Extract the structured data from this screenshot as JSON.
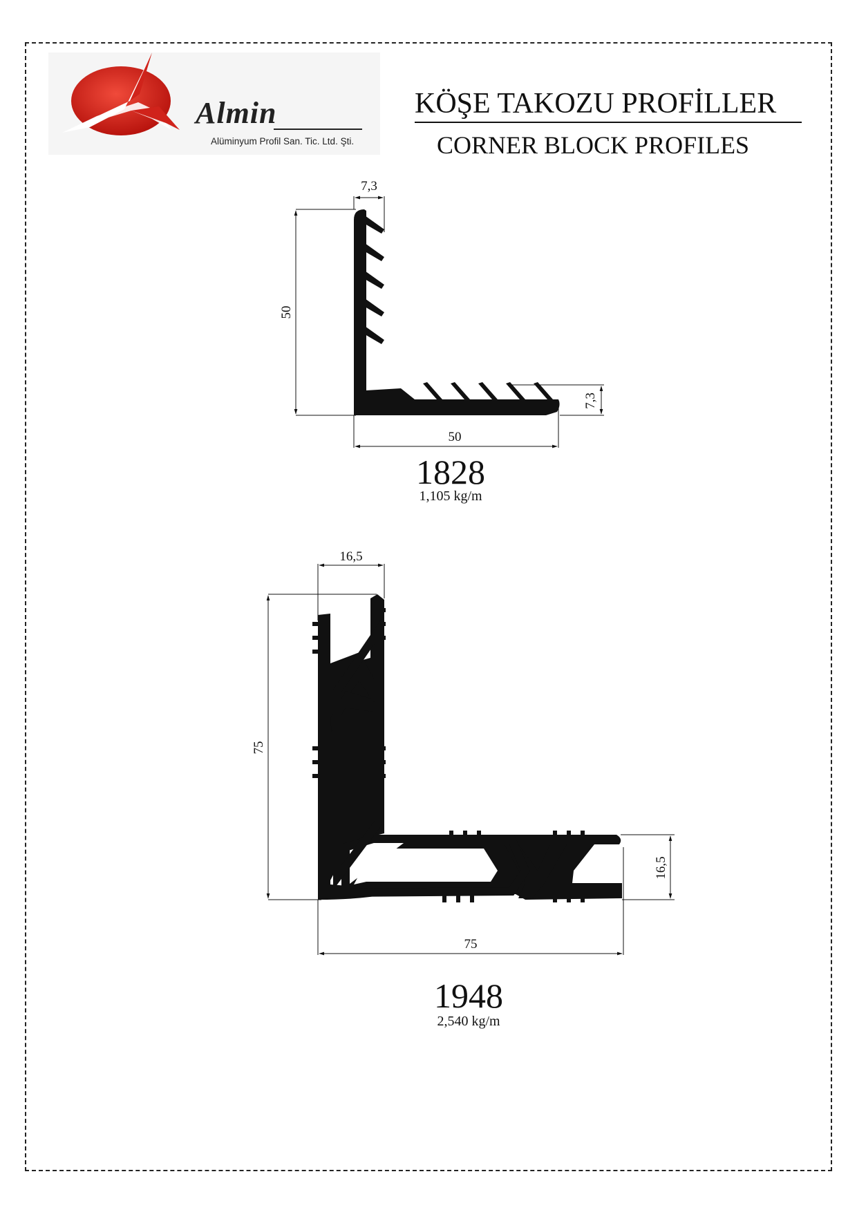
{
  "header": {
    "title_tr": "KÖŞE TAKOZU PROFİLLER",
    "title_en": "CORNER BLOCK PROFILES"
  },
  "logo": {
    "brand": "Almin",
    "subtitle": "Alüminyum Profil San. Tic. Ltd. Şti.",
    "color": "#d0231b"
  },
  "profiles": [
    {
      "code": "1828",
      "weight": "1,105 kg/m",
      "dimensions": {
        "height": "50",
        "width": "50",
        "top_width": "7,3",
        "leg_thickness": "7,3"
      }
    },
    {
      "code": "1948",
      "weight": "2,540 kg/m",
      "dimensions": {
        "height": "75",
        "width": "75",
        "top_width": "16,5",
        "leg_thickness": "16,5"
      }
    }
  ]
}
